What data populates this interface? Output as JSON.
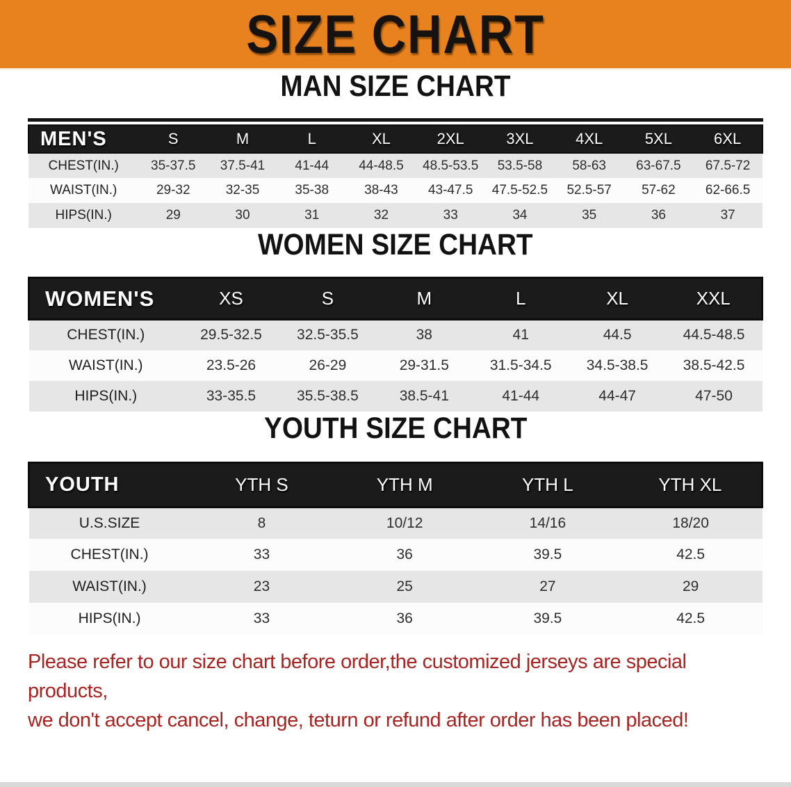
{
  "banner": {
    "title": "SIZE CHART"
  },
  "sections": [
    {
      "title": "MAN SIZE CHART",
      "table": {
        "label": "MEN'S",
        "columns": [
          "S",
          "M",
          "L",
          "XL",
          "2XL",
          "3XL",
          "4XL",
          "5XL",
          "6XL"
        ],
        "rows": [
          {
            "label": "CHEST(IN.)",
            "values": [
              "35-37.5",
              "37.5-41",
              "41-44",
              "44-48.5",
              "48.5-53.5",
              "53.5-58",
              "58-63",
              "63-67.5",
              "67.5-72"
            ]
          },
          {
            "label": "WAIST(IN.)",
            "values": [
              "29-32",
              "32-35",
              "35-38",
              "38-43",
              "43-47.5",
              "47.5-52.5",
              "52.5-57",
              "57-62",
              "62-66.5"
            ]
          },
          {
            "label": "HIPS(IN.)",
            "values": [
              "29",
              "30",
              "31",
              "32",
              "33",
              "34",
              "35",
              "36",
              "37"
            ]
          }
        ]
      }
    },
    {
      "title": "WOMEN SIZE CHART",
      "table": {
        "label": "WOMEN'S",
        "columns": [
          "XS",
          "S",
          "M",
          "L",
          "XL",
          "XXL"
        ],
        "rows": [
          {
            "label": "CHEST(IN.)",
            "values": [
              "29.5-32.5",
              "32.5-35.5",
              "38",
              "41",
              "44.5",
              "44.5-48.5"
            ]
          },
          {
            "label": "WAIST(IN.)",
            "values": [
              "23.5-26",
              "26-29",
              "29-31.5",
              "31.5-34.5",
              "34.5-38.5",
              "38.5-42.5"
            ]
          },
          {
            "label": "HIPS(IN.)",
            "values": [
              "33-35.5",
              "35.5-38.5",
              "38.5-41",
              "41-44",
              "44-47",
              "47-50"
            ]
          }
        ]
      }
    },
    {
      "title": "YOUTH SIZE CHART",
      "table": {
        "label": "YOUTH",
        "columns": [
          "YTH S",
          "YTH M",
          "YTH L",
          "YTH XL"
        ],
        "rows": [
          {
            "label": "U.S.SIZE",
            "values": [
              "8",
              "10/12",
              "14/16",
              "18/20"
            ]
          },
          {
            "label": "CHEST(IN.)",
            "values": [
              "33",
              "36",
              "39.5",
              "42.5"
            ]
          },
          {
            "label": "WAIST(IN.)",
            "values": [
              "23",
              "25",
              "27",
              "29"
            ]
          },
          {
            "label": "HIPS(IN.)",
            "values": [
              "33",
              "36",
              "39.5",
              "42.5"
            ]
          }
        ]
      }
    }
  ],
  "footer": {
    "lines": [
      "Please refer to our size chart before order,the customized jerseys are special products,",
      "we don't accept cancel, change, teturn or refund after order has been placed!"
    ]
  },
  "colors": {
    "banner-orange": "#e8821e",
    "header-black": "#1b1b1b",
    "row-gray": "#e6e6e6",
    "row-white": "#fcfcfc",
    "text-dark": "#2d2d2d",
    "disclaimer-red": "#a82421"
  }
}
